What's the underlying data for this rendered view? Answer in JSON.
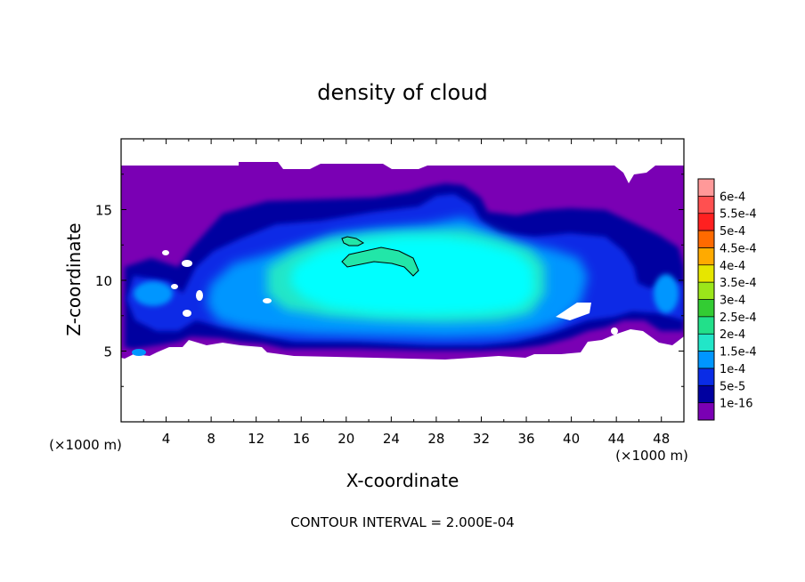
{
  "chart_data": {
    "type": "heatmap",
    "title": "density of cloud",
    "xlabel": "X-coordinate",
    "ylabel": "Z-coordinate",
    "x_unit_left": "(×1000 m)",
    "x_unit_right": "(×1000 m)",
    "footer": "CONTOUR INTERVAL = 2.000E-04",
    "xlim": [
      0,
      50
    ],
    "ylim": [
      0,
      20
    ],
    "x_ticks": [
      4,
      8,
      12,
      16,
      20,
      24,
      28,
      32,
      36,
      40,
      44,
      48
    ],
    "y_ticks": [
      5,
      10,
      15
    ],
    "x_tick_labels": [
      "4",
      "8",
      "12",
      "16",
      "20",
      "24",
      "28",
      "32",
      "36",
      "40",
      "44",
      "48"
    ],
    "y_tick_labels": [
      "5",
      "10",
      "15"
    ],
    "colorbar": {
      "labels": [
        "6e-4",
        "5.5e-4",
        "5e-4",
        "4.5e-4",
        "4e-4",
        "3.5e-4",
        "3e-4",
        "2.5e-4",
        "2e-4",
        "1.5e-4",
        "1e-4",
        "5e-5",
        "1e-16"
      ],
      "colors": [
        "#ff9999",
        "#ff5050",
        "#ff2020",
        "#ff6a00",
        "#ffaa00",
        "#e6e600",
        "#9be61a",
        "#33cc33",
        "#22e08a",
        "#22e6c8",
        "#0096ff",
        "#0a2ce6",
        "#0000a0",
        "#7a00b4"
      ]
    },
    "regions": {
      "cloud_extent": {
        "x": [
          0,
          50
        ],
        "z": [
          4.5,
          18
        ]
      },
      "core_cyan": {
        "x": [
          14,
          37
        ],
        "z": [
          6,
          14
        ]
      },
      "contour_2e-4_main": {
        "x": [
          20,
          26
        ],
        "z": [
          10,
          12
        ]
      },
      "contour_2e-4_small": {
        "x": [
          19.5,
          21
        ],
        "z": [
          12.4,
          13
        ]
      }
    }
  }
}
